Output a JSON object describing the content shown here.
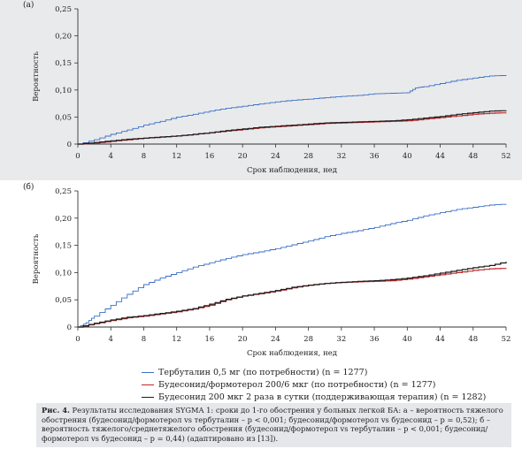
{
  "chart_data": [
    {
      "panel_label": "(а)",
      "type": "line",
      "xlabel": "Срок наблюдения, нед",
      "ylabel": "Вероятность",
      "xlim": [
        0,
        52
      ],
      "ylim": [
        0,
        0.25
      ],
      "xticks": [
        "0",
        "4",
        "8",
        "12",
        "16",
        "20",
        "24",
        "28",
        "32",
        "36",
        "40",
        "44",
        "48",
        "52"
      ],
      "xtick_values": [
        0,
        4,
        8,
        12,
        16,
        20,
        24,
        28,
        32,
        36,
        40,
        44,
        48,
        52
      ],
      "yticks": [
        "0",
        "0,05",
        "0,10",
        "0,15",
        "0,20",
        "0,25"
      ],
      "ytick_values": [
        0,
        0.05,
        0.1,
        0.15,
        0.2,
        0.25
      ],
      "series": [
        {
          "name": "Тербуталин 0,5 мг (по потребности) (n = 1277)",
          "color": "#3b6fc4",
          "x": [
            0,
            2,
            4,
            6,
            8,
            10,
            12,
            14,
            16,
            18,
            20,
            22,
            24,
            26,
            28,
            30,
            32,
            34,
            36,
            38,
            40,
            41,
            42,
            44,
            46,
            48,
            50,
            52
          ],
          "y": [
            0,
            0.008,
            0.018,
            0.026,
            0.035,
            0.042,
            0.05,
            0.055,
            0.061,
            0.066,
            0.07,
            0.074,
            0.078,
            0.081,
            0.083,
            0.086,
            0.088,
            0.09,
            0.093,
            0.094,
            0.095,
            0.104,
            0.106,
            0.112,
            0.118,
            0.122,
            0.126,
            0.127
          ]
        },
        {
          "name": "Будесонид/формотерол 200/6 мкг (по потребности) (n = 1277)",
          "color": "#c0282a",
          "x": [
            0,
            2,
            4,
            6,
            8,
            10,
            12,
            14,
            16,
            18,
            20,
            22,
            24,
            26,
            28,
            30,
            32,
            34,
            36,
            38,
            40,
            42,
            44,
            46,
            48,
            50,
            52
          ],
          "y": [
            0,
            0.002,
            0.005,
            0.008,
            0.011,
            0.013,
            0.015,
            0.018,
            0.021,
            0.024,
            0.027,
            0.03,
            0.032,
            0.034,
            0.036,
            0.038,
            0.039,
            0.04,
            0.041,
            0.042,
            0.043,
            0.046,
            0.049,
            0.052,
            0.055,
            0.057,
            0.058
          ]
        },
        {
          "name": "Будесонид 200 мкг 2 раза в сутки (поддерживающая терапия) (n = 1282)",
          "color": "#1a1a1a",
          "x": [
            0,
            2,
            4,
            6,
            8,
            10,
            12,
            14,
            16,
            18,
            20,
            22,
            24,
            26,
            28,
            30,
            32,
            34,
            36,
            38,
            40,
            42,
            44,
            46,
            48,
            50,
            52
          ],
          "y": [
            0,
            0.003,
            0.006,
            0.009,
            0.011,
            0.013,
            0.015,
            0.018,
            0.021,
            0.025,
            0.028,
            0.031,
            0.033,
            0.035,
            0.037,
            0.039,
            0.04,
            0.041,
            0.042,
            0.043,
            0.045,
            0.048,
            0.051,
            0.055,
            0.058,
            0.061,
            0.062
          ]
        }
      ]
    },
    {
      "panel_label": "(б)",
      "type": "line",
      "xlabel": "Срок наблюдения, нед",
      "ylabel": "Вероятность",
      "xlim": [
        0,
        52
      ],
      "ylim": [
        0,
        0.25
      ],
      "xticks": [
        "0",
        "4",
        "8",
        "12",
        "16",
        "20",
        "24",
        "28",
        "32",
        "36",
        "40",
        "44",
        "48",
        "52"
      ],
      "xtick_values": [
        0,
        4,
        8,
        12,
        16,
        20,
        24,
        28,
        32,
        36,
        40,
        44,
        48,
        52
      ],
      "yticks": [
        "0",
        "0,05",
        "0,10",
        "0,15",
        "0,20",
        "0,25"
      ],
      "ytick_values": [
        0,
        0.05,
        0.1,
        0.15,
        0.2,
        0.25
      ],
      "series": [
        {
          "name": "Тербуталин 0,5 мг (по потребности) (n = 1277)",
          "color": "#3b6fc4",
          "x": [
            0,
            1,
            2,
            4,
            6,
            8,
            10,
            12,
            14,
            16,
            18,
            20,
            22,
            24,
            26,
            28,
            30,
            32,
            34,
            36,
            38,
            40,
            42,
            44,
            46,
            48,
            50,
            52
          ],
          "y": [
            0,
            0.008,
            0.02,
            0.04,
            0.06,
            0.078,
            0.09,
            0.1,
            0.11,
            0.118,
            0.126,
            0.133,
            0.138,
            0.144,
            0.151,
            0.158,
            0.166,
            0.172,
            0.177,
            0.183,
            0.19,
            0.196,
            0.204,
            0.21,
            0.216,
            0.22,
            0.224,
            0.226
          ]
        },
        {
          "name": "Будесонид/формотерол 200/6 мкг (по потребности) (n = 1277)",
          "color": "#c0282a",
          "x": [
            0,
            2,
            4,
            6,
            8,
            10,
            12,
            14,
            16,
            18,
            20,
            22,
            24,
            26,
            28,
            30,
            32,
            34,
            36,
            38,
            40,
            42,
            44,
            46,
            48,
            50,
            52
          ],
          "y": [
            0,
            0.006,
            0.012,
            0.017,
            0.02,
            0.024,
            0.028,
            0.033,
            0.04,
            0.05,
            0.057,
            0.061,
            0.066,
            0.072,
            0.077,
            0.08,
            0.082,
            0.083,
            0.084,
            0.085,
            0.088,
            0.092,
            0.096,
            0.1,
            0.104,
            0.107,
            0.108
          ]
        },
        {
          "name": "Будесонид 200 мкг 2 раза в сутки (поддерживающая терапия) (n = 1282)",
          "color": "#1a1a1a",
          "x": [
            0,
            2,
            4,
            6,
            8,
            10,
            12,
            14,
            16,
            18,
            20,
            22,
            24,
            26,
            28,
            30,
            32,
            34,
            36,
            38,
            40,
            42,
            44,
            46,
            48,
            50,
            52
          ],
          "y": [
            0,
            0.007,
            0.013,
            0.018,
            0.021,
            0.025,
            0.029,
            0.034,
            0.042,
            0.051,
            0.057,
            0.062,
            0.067,
            0.073,
            0.077,
            0.08,
            0.082,
            0.084,
            0.085,
            0.087,
            0.09,
            0.094,
            0.099,
            0.104,
            0.109,
            0.113,
            0.12
          ]
        }
      ]
    }
  ],
  "legend": [
    {
      "label": "Тербуталин 0,5 мг (по потребности) (n = 1277)",
      "color": "#3b6fc4"
    },
    {
      "label": "Будесонид/формотерол 200/6 мкг (по потребности) (n = 1277)",
      "color": "#c0282a"
    },
    {
      "label": "Будесонид 200 мкг 2 раза в сутки (поддерживающая терапия) (n = 1282)",
      "color": "#1a1a1a"
    }
  ],
  "caption": {
    "label": "Рис. 4.",
    "text": "Результаты исследования SYGMA 1: сроки до 1-го обострения у больных легкой БА: а – вероятность тяжелого обострения (будесонид/формотерол vs тербуталин – р < 0,001; будесонид/формотерол vs будесонид – р = 0,52); б – вероятность тяжелого/среднетяжелого обострения (будесонид/формотерол vs тербуталин – р < 0,001; будесонид/формотерол vs будесонид – р = 0,44) (адаптировано из [13])."
  }
}
